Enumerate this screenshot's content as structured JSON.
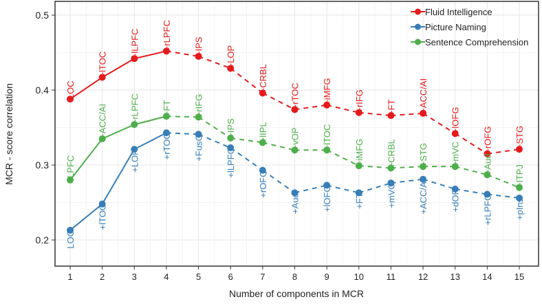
{
  "chart_data": {
    "type": "line",
    "title": "",
    "xlabel": "Number of components in MCR",
    "ylabel": "MCR - score correlation",
    "x": [
      1,
      2,
      3,
      4,
      5,
      6,
      7,
      8,
      9,
      10,
      11,
      12,
      13,
      14,
      15
    ],
    "xlim": [
      0.5,
      15.6
    ],
    "ylim": [
      0.18,
      0.52
    ],
    "yticks": [
      0.2,
      0.3,
      0.4,
      0.5
    ],
    "grid": true,
    "legend_position": "top-right",
    "solid_until_x": 4,
    "series": [
      {
        "name": "Fluid Intelligence",
        "color": "#e41a1c",
        "label_side": "above",
        "values": [
          0.388,
          0.417,
          0.442,
          0.452,
          0.445,
          0.429,
          0.396,
          0.374,
          0.38,
          0.37,
          0.366,
          0.369,
          0.342,
          0.315,
          0.321
        ],
        "point_labels": [
          "LOC",
          "+lTOC",
          "+lLPFC",
          "+rLPFC",
          "+IPS",
          "+LOP",
          "+CRBL",
          "+rTOC",
          "+iMFG",
          "+rIFG",
          "+FT",
          "+ACC/AI",
          "+lOFG",
          "+rOFG",
          "+STG"
        ]
      },
      {
        "name": "Picture Naming",
        "color": "#377eb8",
        "label_side": "below",
        "values": [
          0.213,
          0.248,
          0.321,
          0.343,
          0.341,
          0.323,
          0.293,
          0.263,
          0.273,
          0.263,
          0.276,
          0.281,
          0.268,
          0.261,
          0.256
        ],
        "point_labels": [
          "LOC",
          "+lTOC",
          "+LOP",
          "+rTOC",
          "+FusG",
          "+lLPFC",
          "+rOFG",
          "+Aud",
          "+lOFG",
          "+FT",
          "+mVC",
          "+ACC/AI",
          "+dOP",
          "+rLPFC",
          "+pIns"
        ]
      },
      {
        "name": "Sentence Comprehension",
        "color": "#4daf4a",
        "label_side": "above",
        "values": [
          0.28,
          0.335,
          0.354,
          0.365,
          0.364,
          0.336,
          0.33,
          0.32,
          0.32,
          0.299,
          0.296,
          0.298,
          0.298,
          0.287,
          0.27
        ],
        "point_labels": [
          "lLPFC",
          "+ACC/AI",
          "+rLPFC",
          "+FT",
          "+rIFG",
          "+IPS",
          "+lIPL",
          "+vOP",
          "+lTOC",
          "+iMFG",
          "+CRBL",
          "+STG",
          "+mVC",
          "+Aud",
          "+lTPJ"
        ]
      }
    ]
  }
}
